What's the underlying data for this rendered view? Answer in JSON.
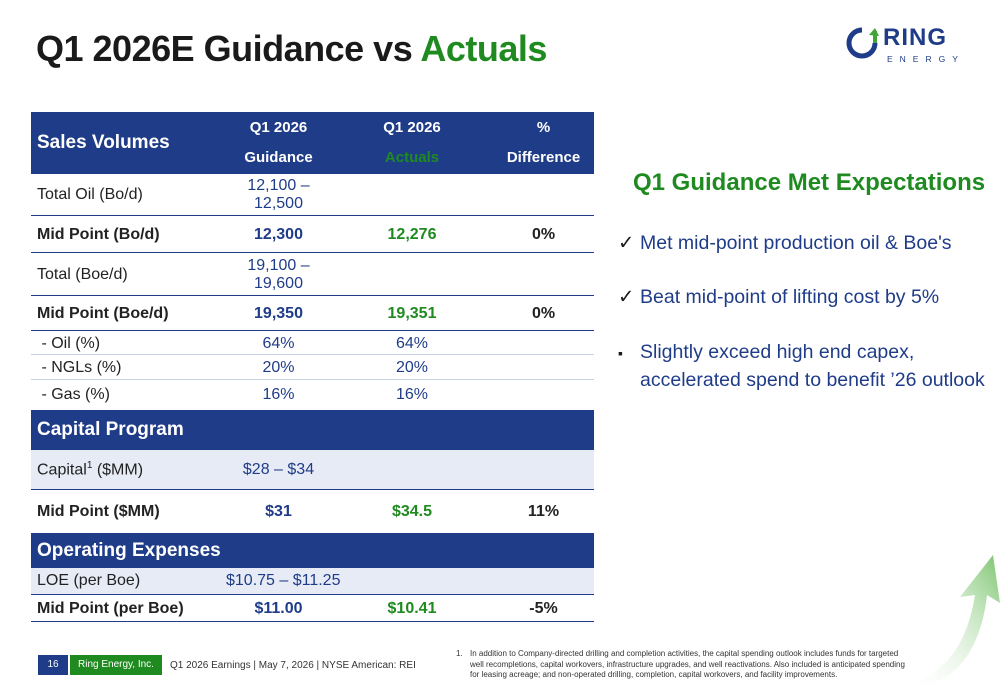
{
  "title": {
    "prefix": "Q1 2026E Guidance vs ",
    "highlight": "Actuals"
  },
  "logo": {
    "word": "RING",
    "sub": "ENERGY"
  },
  "table": {
    "header": {
      "section": "Sales Volumes",
      "col1_l1": "Q1 2026",
      "col1_l2": "Guidance",
      "col2_l1": "Q1 2026",
      "col2_l2": "Actuals",
      "col3_l1": "%",
      "col3_l2": "Difference"
    },
    "rows": [
      {
        "label": "Total Oil (Bo/d)",
        "guidance": "12,100 – 12,500",
        "actual": "",
        "diff": ""
      },
      {
        "label": "Mid Point (Bo/d)",
        "guidance": "12,300",
        "actual": "12,276",
        "diff": "0%"
      },
      {
        "label": "Total (Boe/d)",
        "guidance": "19,100 – 19,600",
        "actual": "",
        "diff": ""
      },
      {
        "label": "Mid Point (Boe/d)",
        "guidance": "19,350",
        "actual": "19,351",
        "diff": "0%"
      },
      {
        "label": " - Oil (%)",
        "guidance": "64%",
        "actual": "64%",
        "diff": ""
      },
      {
        "label": " - NGLs (%)",
        "guidance": "20%",
        "actual": "20%",
        "diff": ""
      },
      {
        "label": " - Gas (%)",
        "guidance": "16%",
        "actual": "16%",
        "diff": ""
      },
      {
        "label": "Capital Program"
      },
      {
        "label": "Capital",
        "sup": "1",
        "label_suffix": " ($MM)",
        "guidance": "$28 – $34",
        "actual": "",
        "diff": ""
      },
      {
        "label": "Mid Point ($MM)",
        "guidance": "$31",
        "actual": "$34.5",
        "diff": "11%"
      },
      {
        "label": "Operating Expenses"
      },
      {
        "label": "LOE (per Boe)",
        "guidance": "$10.75 – $11.25",
        "actual": "",
        "diff": ""
      },
      {
        "label": "Mid Point (per Boe)",
        "guidance": "$11.00",
        "actual": "$10.41",
        "diff": "-5%"
      }
    ]
  },
  "summary": {
    "title": "Q1 Guidance Met Expectations",
    "bullets": [
      {
        "mark": "✓",
        "lines": [
          "Met mid-point production oil & Boe's"
        ]
      },
      {
        "mark": "✓",
        "lines": [
          "Beat mid-point of lifting cost by 5%"
        ]
      },
      {
        "mark": "▪",
        "lines": [
          "Slightly exceed high end capex,",
          "accelerated spend to benefit ’26 outlook"
        ]
      }
    ]
  },
  "footer": {
    "page": "16",
    "company": "Ring Energy, Inc.",
    "text": "Q1 2026 Earnings | May 7, 2026 | NYSE American: REI"
  },
  "footnote": {
    "num": "1.",
    "text": "In addition to Company-directed drilling and completion activities, the capital spending outlook includes funds for targeted well recompletions, capital workovers, infrastructure upgrades, and well reactivations. Also included is anticipated spending for leasing acreage; and non-operated drilling, completion, capital workovers, and facility improvements."
  },
  "colors": {
    "navy": "#1f3c88",
    "green": "#1f8a1f",
    "band_light": "#e6ebf5"
  }
}
